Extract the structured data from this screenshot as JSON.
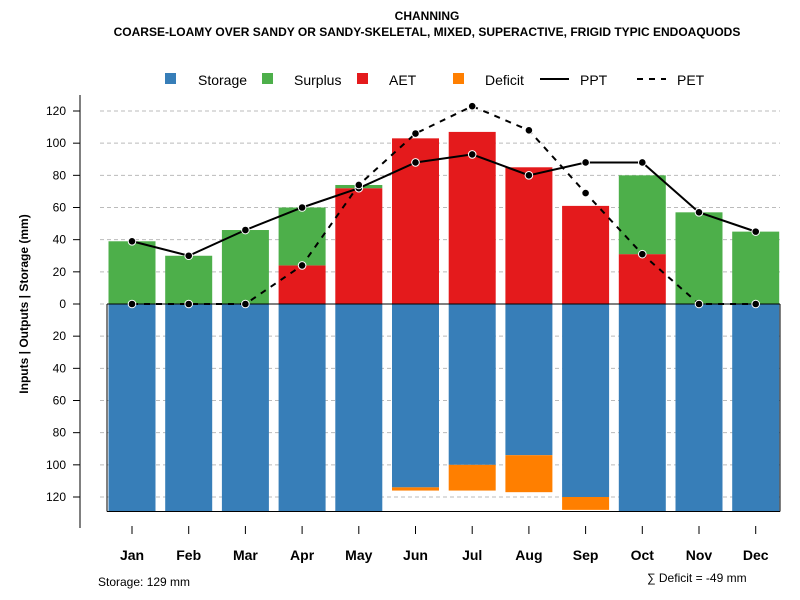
{
  "title": "CHANNING",
  "subtitle": "COARSE-LOAMY OVER SANDY OR SANDY-SKELETAL, MIXED, SUPERACTIVE, FRIGID TYPIC ENDOAQUODS",
  "footer_left": "Storage: 129 mm",
  "footer_right": "∑ Deficit = -49 mm",
  "colors": {
    "storage": "#377EB8",
    "surplus": "#4DAF4A",
    "aet": "#E41A1C",
    "deficit": "#FF7F00",
    "line": "#000000",
    "grid": "#bbbbbb"
  },
  "chart_data": {
    "type": "bar",
    "title": "CHANNING",
    "subtitle": "COARSE-LOAMY OVER SANDY OR SANDY-SKELETAL, MIXED, SUPERACTIVE, FRIGID TYPIC ENDOAQUODS",
    "ylabel": "Inputs | Outputs | Storage    (mm)",
    "xlabel": "",
    "ylim": [
      -130,
      130
    ],
    "grid": true,
    "yticks": [
      120,
      100,
      80,
      60,
      40,
      20,
      0,
      -20,
      -40,
      -60,
      -80,
      -100,
      -120
    ],
    "ytick_labels": [
      "120",
      "100",
      "80",
      "60",
      "40",
      "20",
      "0",
      "20",
      "40",
      "60",
      "80",
      "100",
      "120"
    ],
    "categories": [
      "Jan",
      "Feb",
      "Mar",
      "Apr",
      "May",
      "Jun",
      "Jul",
      "Aug",
      "Sep",
      "Oct",
      "Nov",
      "Dec"
    ],
    "legend": [
      "Storage",
      "Surplus",
      "AET",
      "Deficit",
      "PPT",
      "PET"
    ],
    "legend_placement": "top-center",
    "series": [
      {
        "name": "Storage",
        "kind": "bar-down",
        "values": [
          129,
          129,
          129,
          129,
          129,
          114,
          100,
          94,
          120,
          129,
          129,
          129
        ]
      },
      {
        "name": "Deficit",
        "kind": "bar-down-stacked",
        "values": [
          0,
          0,
          0,
          0,
          0,
          2,
          16,
          23,
          8,
          0,
          0,
          0
        ]
      },
      {
        "name": "AET",
        "kind": "bar-up",
        "values": [
          0,
          0,
          0,
          24,
          72,
          103,
          107,
          85,
          61,
          31,
          0,
          0
        ]
      },
      {
        "name": "Surplus",
        "kind": "bar-up-stacked",
        "values": [
          39,
          30,
          46,
          36,
          2,
          0,
          0,
          0,
          0,
          49,
          57,
          45
        ]
      },
      {
        "name": "PPT",
        "kind": "line-solid",
        "values": [
          39,
          30,
          46,
          60,
          72,
          88,
          93,
          80,
          88,
          88,
          57,
          45
        ]
      },
      {
        "name": "PET",
        "kind": "line-dashed",
        "values": [
          0,
          0,
          0,
          24,
          74,
          106,
          123,
          108,
          69,
          31,
          0,
          0
        ]
      }
    ]
  }
}
